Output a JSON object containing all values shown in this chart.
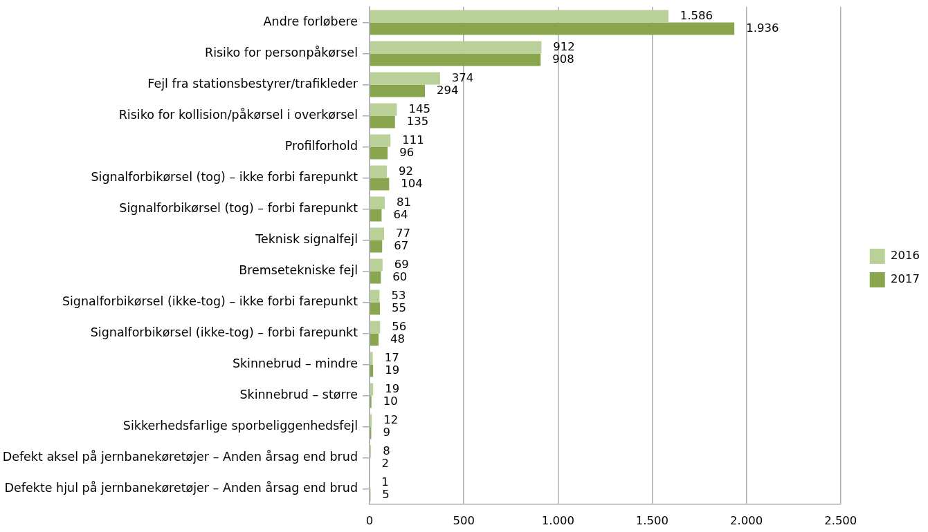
{
  "chart_data": {
    "type": "bar",
    "orientation": "horizontal",
    "categories": [
      "Andre forløbere",
      "Risiko for personpåkørsel",
      "Fejl fra stationsbestyrer/trafikleder",
      "Risiko for kollision/påkørsel i overkørsel",
      "Profilforhold",
      "Signalforbikørsel (tog) – ikke forbi farepunkt",
      "Signalforbikørsel (tog) – forbi farepunkt",
      "Teknisk signalfejl",
      "Bremsetekniske fejl",
      "Signalforbikørsel (ikke-tog) – ikke forbi farepunkt",
      "Signalforbikørsel (ikke-tog) – forbi farepunkt",
      "Skinnebrud – mindre",
      "Skinnebrud – større",
      "Sikkerhedsfarlige sporbeliggenhedsfejl",
      "Defekt aksel på jernbanekøretøjer – Anden årsag end brud",
      "Defekte hjul på jernbanekøretøjer – Anden årsag end brud"
    ],
    "series": [
      {
        "name": "2016",
        "color": "#b9d098",
        "values": [
          1586,
          912,
          374,
          145,
          111,
          92,
          81,
          77,
          69,
          53,
          56,
          17,
          19,
          12,
          8,
          1
        ],
        "value_labels": [
          "1.586",
          "912",
          "374",
          "145",
          "111",
          "92",
          "81",
          "77",
          "69",
          "53",
          "56",
          "17",
          "19",
          "12",
          "8",
          "1"
        ]
      },
      {
        "name": "2017",
        "color": "#89a54e",
        "values": [
          1936,
          908,
          294,
          135,
          96,
          104,
          64,
          67,
          60,
          55,
          48,
          19,
          10,
          9,
          2,
          5
        ],
        "value_labels": [
          "1.936",
          "908",
          "294",
          "135",
          "96",
          "104",
          "64",
          "67",
          "60",
          "55",
          "48",
          "19",
          "10",
          "9",
          "2",
          "5"
        ]
      }
    ],
    "xlim": [
      0,
      2500
    ],
    "xticks": [
      0,
      500,
      {
        "value": 1000,
        "label": "1.000"
      },
      {
        "value": 1500,
        "label": "1.500"
      },
      {
        "value": 2000,
        "label": "2.000"
      },
      {
        "value": 2500,
        "label": "2.500"
      }
    ],
    "grid": "x",
    "legend": "right"
  }
}
